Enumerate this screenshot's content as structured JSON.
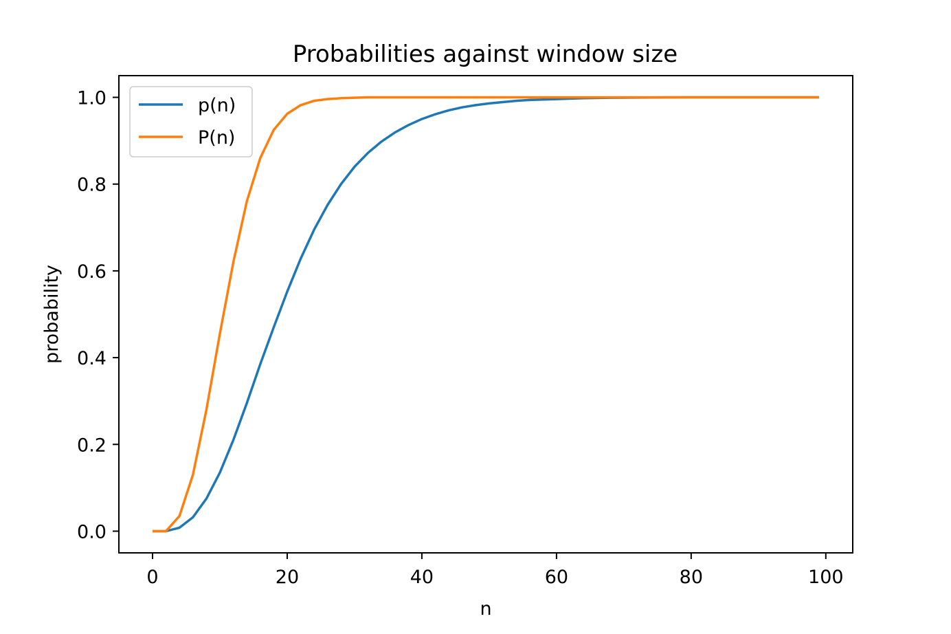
{
  "chart_data": {
    "type": "line",
    "title": "Probabilities against window size",
    "xlabel": "n",
    "ylabel": "probability",
    "xlim": [
      -5,
      104
    ],
    "ylim": [
      -0.05,
      1.05
    ],
    "xticks": [
      0,
      20,
      40,
      60,
      80,
      100
    ],
    "yticks": [
      0.0,
      0.2,
      0.4,
      0.6,
      0.8,
      1.0
    ],
    "xtick_labels": [
      "0",
      "20",
      "40",
      "60",
      "80",
      "100"
    ],
    "ytick_labels": [
      "0.0",
      "0.2",
      "0.4",
      "0.6",
      "0.8",
      "1.0"
    ],
    "grid": false,
    "legend_position": "top-left",
    "colors": {
      "p": "#1f77b4",
      "P": "#ff7f0e"
    },
    "x": [
      0,
      2,
      4,
      6,
      8,
      10,
      12,
      14,
      16,
      18,
      20,
      22,
      24,
      26,
      28,
      30,
      32,
      34,
      36,
      38,
      40,
      42,
      44,
      46,
      48,
      50,
      52,
      54,
      56,
      58,
      60,
      64,
      68,
      72,
      76,
      80,
      85,
      90,
      95,
      99
    ],
    "series": [
      {
        "name": "p(n)",
        "values": [
          0.0,
          0.0,
          0.008,
          0.032,
          0.075,
          0.135,
          0.21,
          0.295,
          0.385,
          0.47,
          0.552,
          0.628,
          0.695,
          0.752,
          0.8,
          0.84,
          0.872,
          0.898,
          0.919,
          0.936,
          0.95,
          0.961,
          0.97,
          0.977,
          0.982,
          0.986,
          0.989,
          0.992,
          0.994,
          0.995,
          0.996,
          0.998,
          0.999,
          0.9995,
          0.9998,
          1.0,
          1.0,
          1.0,
          1.0,
          1.0
        ]
      },
      {
        "name": "P(n)",
        "values": [
          0.0,
          0.0,
          0.035,
          0.13,
          0.28,
          0.455,
          0.62,
          0.76,
          0.86,
          0.925,
          0.962,
          0.982,
          0.992,
          0.996,
          0.998,
          0.999,
          1.0,
          1.0,
          1.0,
          1.0,
          1.0,
          1.0,
          1.0,
          1.0,
          1.0,
          1.0,
          1.0,
          1.0,
          1.0,
          1.0,
          1.0,
          1.0,
          1.0,
          1.0,
          1.0,
          1.0,
          1.0,
          1.0,
          1.0,
          1.0
        ]
      }
    ]
  }
}
